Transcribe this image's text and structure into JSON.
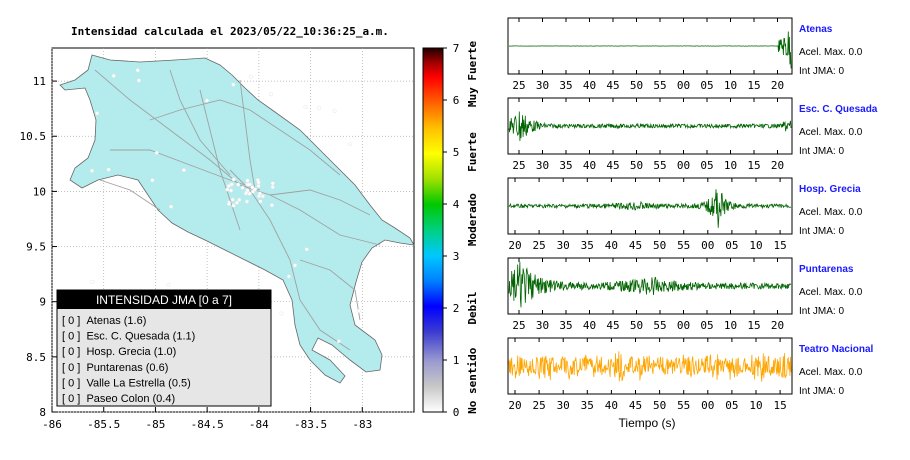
{
  "map": {
    "title": "Intensidad calculada el 2023/05/22_10:36:25_a.m.",
    "x_ticks": [
      "-86",
      "-85.5",
      "-85",
      "-84.5",
      "-84",
      "-83.5",
      "-83"
    ],
    "y_ticks": [
      "11",
      "10.5",
      "10",
      "9.5",
      "9",
      "8.5",
      "8"
    ],
    "xlim": [
      -86,
      -82.5
    ],
    "ylim": [
      8,
      11.3
    ],
    "land_color": "#b4ecee",
    "legend": {
      "header": "INTENSIDAD JMA [0 a 7]",
      "items": [
        "[ 0 ]  Atenas (1.6)",
        "[ 0 ]  Esc. C. Quesada (1.1)",
        "[ 0 ]  Hosp. Grecia (1.0)",
        "[ 0 ]  Puntarenas (0.6)",
        "[ 0 ]  Valle La Estrella (0.5)",
        "[ 0 ]  Paseo Colon (0.4)"
      ]
    }
  },
  "colorbar": {
    "ticks": [
      "7",
      "6",
      "5",
      "4",
      "3",
      "2",
      "1",
      "0"
    ],
    "labels": [
      "Muy Fuerte",
      "Fuerte",
      "Moderado",
      "Debil",
      "No sentido"
    ]
  },
  "chart_data": [
    {
      "type": "line",
      "name": "Atenas",
      "color": "#006400",
      "x_ticks": [
        "25",
        "30",
        "35",
        "40",
        "45",
        "50",
        "55",
        "00",
        "05",
        "10",
        "15",
        "20"
      ],
      "pattern": "quiet-then-burst-end",
      "info": [
        "Acel. Max. 0.0",
        "Int JMA: 0"
      ]
    },
    {
      "type": "line",
      "name": "Esc. C. Quesada",
      "color": "#006400",
      "x_ticks": [
        "25",
        "30",
        "35",
        "40",
        "45",
        "50",
        "55",
        "00",
        "05",
        "10",
        "15",
        "20"
      ],
      "pattern": "burst-start",
      "info": [
        "Acel. Max. 0.0",
        "Int JMA: 0"
      ]
    },
    {
      "type": "line",
      "name": "Hosp. Grecia",
      "color": "#006400",
      "x_ticks": [
        "20",
        "25",
        "30",
        "35",
        "40",
        "45",
        "50",
        "55",
        "00",
        "05",
        "10",
        "15"
      ],
      "pattern": "burst-late",
      "info": [
        "Acel. Max. 0.0",
        "Int JMA: 0"
      ]
    },
    {
      "type": "line",
      "name": "Puntarenas",
      "color": "#006400",
      "x_ticks": [
        "25",
        "30",
        "35",
        "40",
        "45",
        "50",
        "55",
        "00",
        "05",
        "10",
        "15",
        "20"
      ],
      "pattern": "burst-start-wide",
      "info": [
        "Acel. Max. 0.0",
        "Int JMA: 0"
      ]
    },
    {
      "type": "line",
      "name": "Teatro Nacional",
      "color": "#ffa500",
      "x_ticks": [
        "20",
        "25",
        "30",
        "35",
        "40",
        "45",
        "50",
        "55",
        "00",
        "05",
        "10",
        "15"
      ],
      "pattern": "noise",
      "info": [
        "Acel. Max. 0.0",
        "Int JMA: 0"
      ]
    }
  ],
  "xlabel": "Tiempo (s)"
}
